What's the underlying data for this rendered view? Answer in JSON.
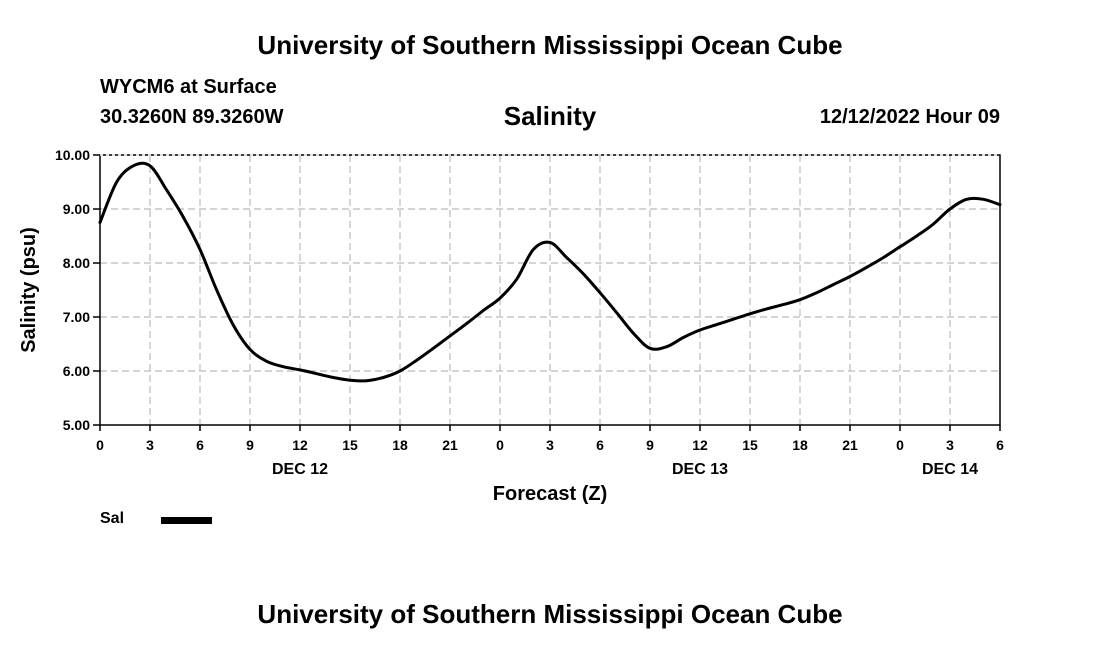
{
  "header": {
    "org_title": "University of Southern Mississippi Ocean Cube",
    "station": "WYCM6 at Surface",
    "coords": "30.3260N  89.3260W",
    "datetime": "12/12/2022 Hour 09"
  },
  "footer": {
    "org_title": "University of Southern Mississippi Ocean Cube"
  },
  "legend": {
    "label": "Sal"
  },
  "colors": {
    "line": "#000000",
    "grid": "#bbbbbb"
  },
  "chart_data": {
    "type": "line",
    "title": "Salinity",
    "xlabel": "Forecast (Z)",
    "ylabel": "Salinity (psu)",
    "x_unit": "hours since 12/12/2022 00Z",
    "xlim": [
      0,
      54
    ],
    "ylim": [
      5,
      10
    ],
    "grid": true,
    "x_ticks": [
      0,
      3,
      6,
      9,
      12,
      15,
      18,
      21,
      24,
      27,
      30,
      33,
      36,
      39,
      42,
      45,
      48,
      51,
      54
    ],
    "x_tick_labels": [
      "0",
      "3",
      "6",
      "9",
      "12",
      "15",
      "18",
      "21",
      "0",
      "3",
      "6",
      "9",
      "12",
      "15",
      "18",
      "21",
      "0",
      "3",
      "6"
    ],
    "y_ticks": [
      5,
      6,
      7,
      8,
      9,
      10
    ],
    "y_tick_labels": [
      "5.00",
      "6.00",
      "7.00",
      "8.00",
      "9.00",
      "10.00"
    ],
    "date_labels": [
      {
        "hour": 12,
        "text": "DEC 12"
      },
      {
        "hour": 36,
        "text": "DEC 13"
      },
      {
        "hour": 51,
        "text": "DEC 14"
      }
    ],
    "series": [
      {
        "name": "Sal",
        "x": [
          0,
          1,
          2,
          3,
          4,
          5,
          6,
          7,
          8,
          9,
          10,
          11,
          12,
          13,
          14,
          15,
          16,
          17,
          18,
          19,
          20,
          21,
          22,
          23,
          24,
          25,
          26,
          27,
          28,
          29,
          30,
          31,
          32,
          33,
          34,
          35,
          36,
          37,
          38,
          39,
          40,
          41,
          42,
          43,
          44,
          45,
          46,
          47,
          48,
          49,
          50,
          51,
          52,
          53,
          54
        ],
        "values": [
          8.75,
          9.5,
          9.8,
          9.8,
          9.35,
          8.85,
          8.25,
          7.5,
          6.85,
          6.4,
          6.18,
          6.08,
          6.02,
          5.95,
          5.88,
          5.83,
          5.82,
          5.88,
          6.0,
          6.2,
          6.42,
          6.65,
          6.88,
          7.12,
          7.35,
          7.7,
          8.25,
          8.38,
          8.1,
          7.8,
          7.45,
          7.08,
          6.7,
          6.42,
          6.45,
          6.62,
          6.76,
          6.86,
          6.96,
          7.06,
          7.15,
          7.23,
          7.32,
          7.45,
          7.6,
          7.75,
          7.92,
          8.1,
          8.3,
          8.5,
          8.72,
          9.0,
          9.18,
          9.18,
          9.08
        ]
      }
    ]
  }
}
